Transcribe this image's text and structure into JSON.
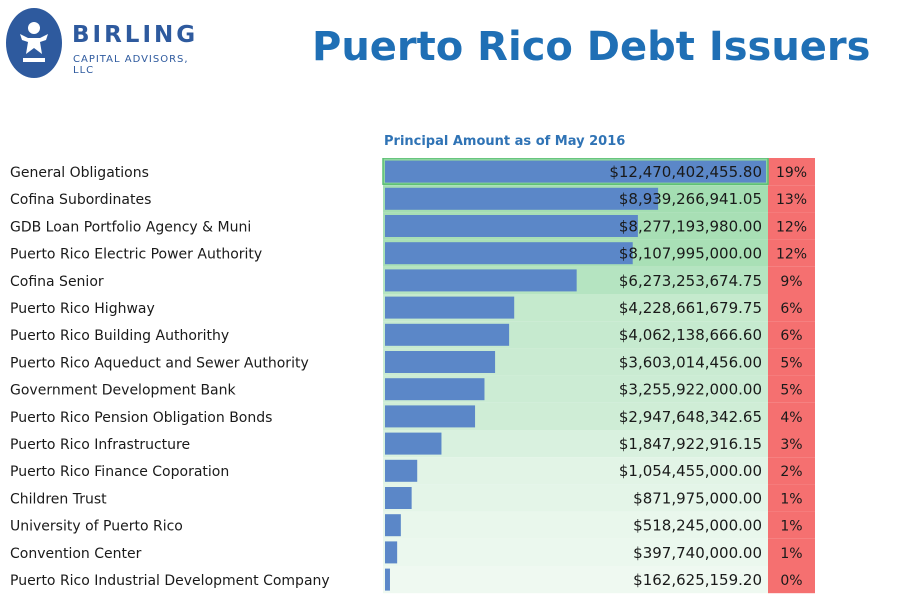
{
  "header": {
    "logo_name": "BIRLING",
    "logo_sub": "CAPITAL ADVISORS, LLC",
    "title": "Puerto Rico Debt Issuers"
  },
  "chart_data": {
    "type": "bar",
    "orientation": "horizontal",
    "title": "Puerto Rico Debt Issuers",
    "subtitle": "Principal Amount as of May 2016",
    "categories": [
      "General Obligations",
      "Cofina Subordinates",
      "GDB Loan Portfolio Agency & Muni",
      "Puerto Rico Electric Power Authority",
      "Cofina Senior",
      "Puerto Rico Highway",
      "Puerto Rico Building Authorithy",
      "Puerto Rico Aqueduct and Sewer Authority",
      "Government Development Bank",
      "Puerto Rico Pension Obligation Bonds",
      "Puerto Rico Infrastructure",
      "Puerto Rico Finance Coporation",
      "Children Trust",
      "University of Puerto Rico",
      "Convention Center",
      "Puerto Rico Industrial Development Company"
    ],
    "values": [
      12470402455.8,
      8939266941.05,
      8277193980.0,
      8107995000.0,
      6273253674.75,
      4228661679.75,
      4062138666.6,
      3603014456.0,
      3255922000.0,
      2947648342.65,
      1847922916.15,
      1054455000.0,
      871975000.0,
      518245000.0,
      397740000.0,
      162625159.2
    ],
    "value_labels": [
      "$12,470,402,455.80",
      "$8,939,266,941.05",
      "$8,277,193,980.00",
      "$8,107,995,000.00",
      "$6,273,253,674.75",
      "$4,228,661,679.75",
      "$4,062,138,666.60",
      "$3,603,014,456.00",
      "$3,255,922,000.00",
      "$2,947,648,342.65",
      "$1,847,922,916.15",
      "$1,054,455,000.00",
      "$871,975,000.00",
      "$518,245,000.00",
      "$397,740,000.00",
      "$162,625,159.20"
    ],
    "percent_labels": [
      "19%",
      "13%",
      "12%",
      "12%",
      "9%",
      "6%",
      "6%",
      "5%",
      "5%",
      "4%",
      "3%",
      "2%",
      "1%",
      "1%",
      "1%",
      "0%"
    ],
    "xlim": [
      0,
      12470402455.8
    ],
    "grid": false,
    "legend": "none",
    "colors": {
      "bar": "#5b87c8",
      "heat_high": "#8fd6a0",
      "heat_low": "#ffffff",
      "percent_cell": "#f57070",
      "title": "#1f6fb5",
      "logo": "#2e5a9e"
    }
  }
}
